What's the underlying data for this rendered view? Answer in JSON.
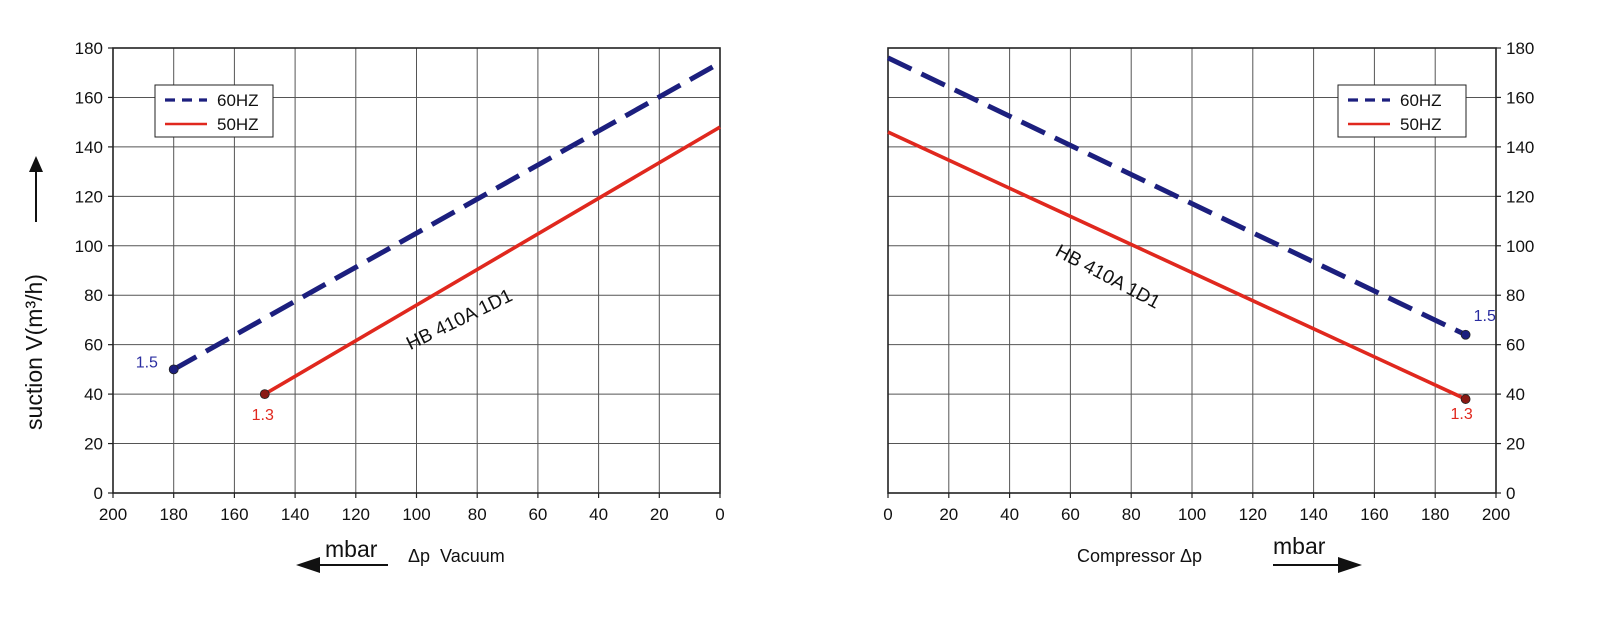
{
  "y_axis_label": "suction V(m³/h)",
  "x_unit_label": "mbar",
  "vacuum_label": "Δp  Vacuum",
  "compressor_label": "Compressor Δp",
  "chart_data": [
    {
      "type": "line",
      "name": "vacuum",
      "xlim": [
        200,
        0
      ],
      "ylim": [
        0,
        180
      ],
      "x_ticks": [
        200,
        180,
        160,
        140,
        120,
        100,
        80,
        60,
        40,
        20,
        0
      ],
      "y_ticks": [
        0,
        20,
        40,
        60,
        80,
        100,
        120,
        140,
        160,
        180
      ],
      "grid": true,
      "legend_position": "top-left",
      "annotation": "HB 410A 1D1",
      "series": [
        {
          "name": "60HZ",
          "color": "#1c1f7e",
          "dashed": true,
          "points": [
            [
              180,
              50
            ],
            [
              0,
              174
            ]
          ],
          "end_label": "1.5"
        },
        {
          "name": "50HZ",
          "color": "#e0281e",
          "dashed": false,
          "points": [
            [
              150,
              40
            ],
            [
              0,
              148
            ]
          ],
          "end_label": "1.3"
        }
      ]
    },
    {
      "type": "line",
      "name": "compressor",
      "xlim": [
        0,
        200
      ],
      "ylim": [
        0,
        180
      ],
      "x_ticks": [
        0,
        20,
        40,
        60,
        80,
        100,
        120,
        140,
        160,
        180,
        200
      ],
      "y_ticks": [
        0,
        20,
        40,
        60,
        80,
        100,
        120,
        140,
        160,
        180
      ],
      "grid": true,
      "legend_position": "top-right",
      "annotation": "HB 410A 1D1",
      "series": [
        {
          "name": "60HZ",
          "color": "#1c1f7e",
          "dashed": true,
          "points": [
            [
              0,
              176
            ],
            [
              190,
              64
            ]
          ],
          "end_label": "1.5"
        },
        {
          "name": "50HZ",
          "color": "#e0281e",
          "dashed": false,
          "points": [
            [
              0,
              146
            ],
            [
              190,
              38
            ]
          ],
          "end_label": "1.3"
        }
      ]
    }
  ]
}
